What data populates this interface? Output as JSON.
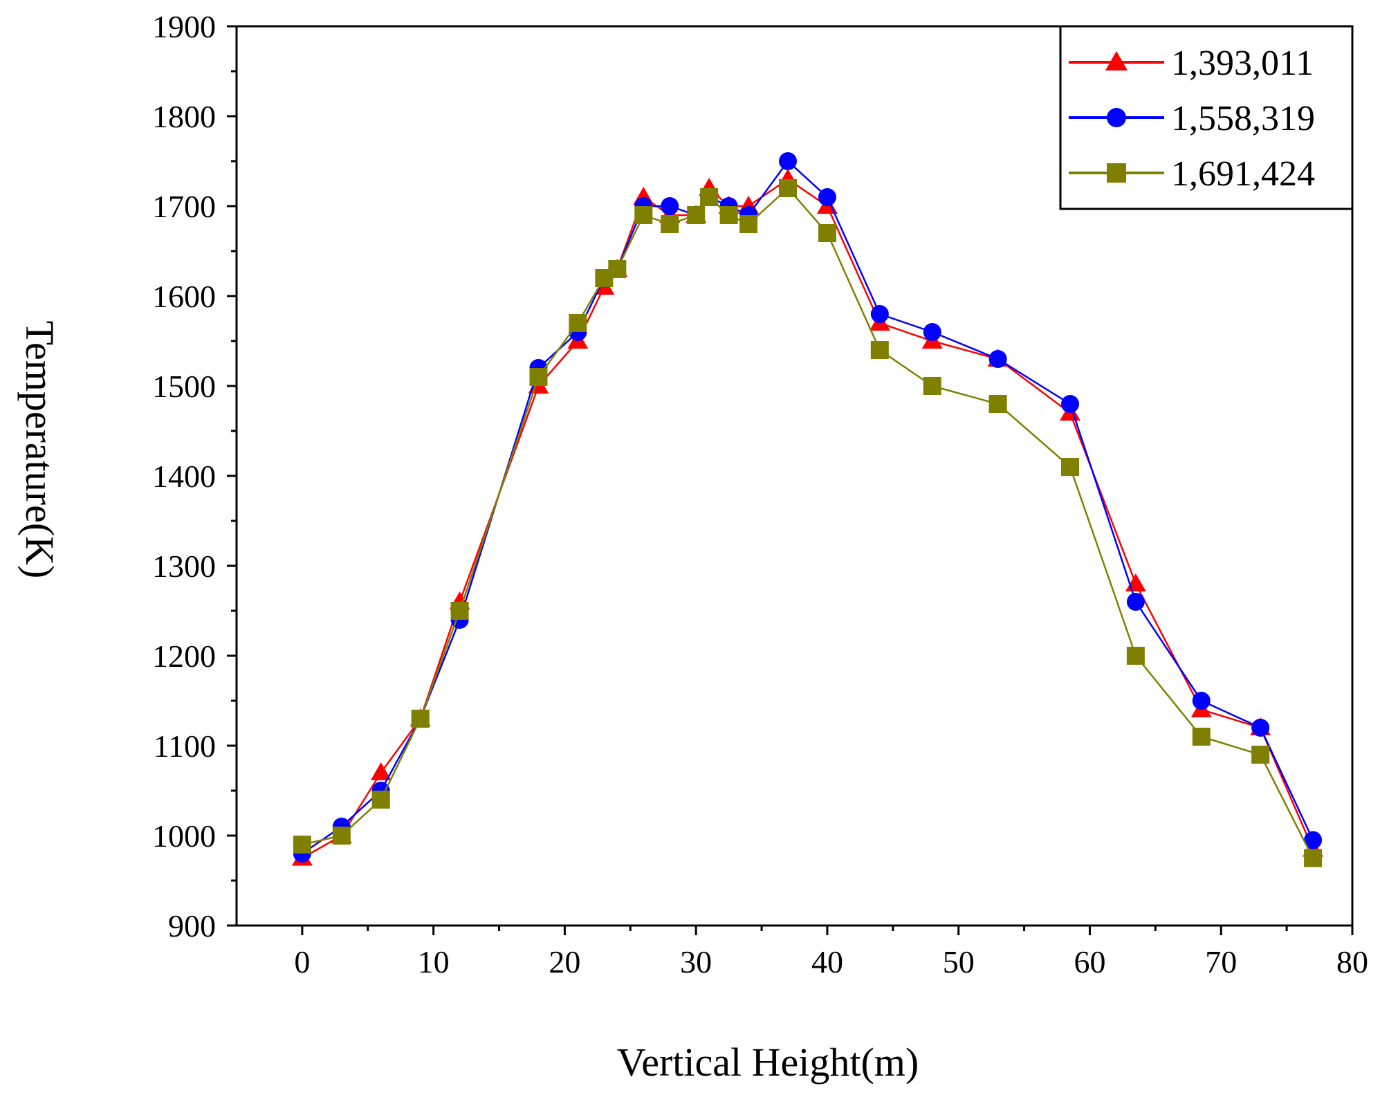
{
  "chart_data": {
    "type": "line",
    "title": "",
    "xlabel": "Vertical Height(m)",
    "ylabel": "Temperature(K)",
    "xlim": [
      -5,
      80
    ],
    "ylim": [
      900,
      1900
    ],
    "x_ticks": [
      0,
      10,
      20,
      30,
      40,
      50,
      60,
      70,
      80
    ],
    "y_ticks": [
      900,
      1000,
      1100,
      1200,
      1300,
      1400,
      1500,
      1600,
      1700,
      1800,
      1900
    ],
    "grid": false,
    "legend_position": "top-right",
    "series": [
      {
        "name": "1,393,011",
        "color": "#ff0000",
        "marker": "triangle",
        "x": [
          0,
          3,
          6,
          9,
          12,
          18,
          21,
          23,
          24,
          26,
          28,
          30,
          31,
          32.5,
          34,
          37,
          40,
          44,
          48,
          53,
          58.5,
          63.5,
          68.5,
          73,
          77
        ],
        "y": [
          975,
          1000,
          1070,
          1130,
          1260,
          1500,
          1550,
          1610,
          1630,
          1710,
          1690,
          1690,
          1720,
          1700,
          1700,
          1730,
          1700,
          1570,
          1550,
          1530,
          1470,
          1280,
          1140,
          1120,
          985
        ]
      },
      {
        "name": "1,558,319",
        "color": "#0000ff",
        "marker": "circle",
        "x": [
          0,
          3,
          6,
          9,
          12,
          18,
          21,
          23,
          24,
          26,
          28,
          30,
          31,
          32.5,
          34,
          37,
          40,
          44,
          48,
          53,
          58.5,
          63.5,
          68.5,
          73,
          77
        ],
        "y": [
          980,
          1010,
          1050,
          1130,
          1240,
          1520,
          1560,
          1620,
          1630,
          1700,
          1700,
          1690,
          1710,
          1700,
          1690,
          1750,
          1710,
          1580,
          1560,
          1530,
          1480,
          1260,
          1150,
          1120,
          995
        ]
      },
      {
        "name": "1,691,424",
        "color": "#808000",
        "marker": "square",
        "x": [
          0,
          3,
          6,
          9,
          12,
          18,
          21,
          23,
          24,
          26,
          28,
          30,
          31,
          32.5,
          34,
          37,
          40,
          44,
          48,
          53,
          58.5,
          63.5,
          68.5,
          73,
          77
        ],
        "y": [
          990,
          1000,
          1040,
          1130,
          1250,
          1510,
          1570,
          1620,
          1630,
          1690,
          1680,
          1690,
          1710,
          1690,
          1680,
          1720,
          1670,
          1540,
          1500,
          1480,
          1410,
          1200,
          1110,
          1090,
          975
        ]
      }
    ]
  }
}
